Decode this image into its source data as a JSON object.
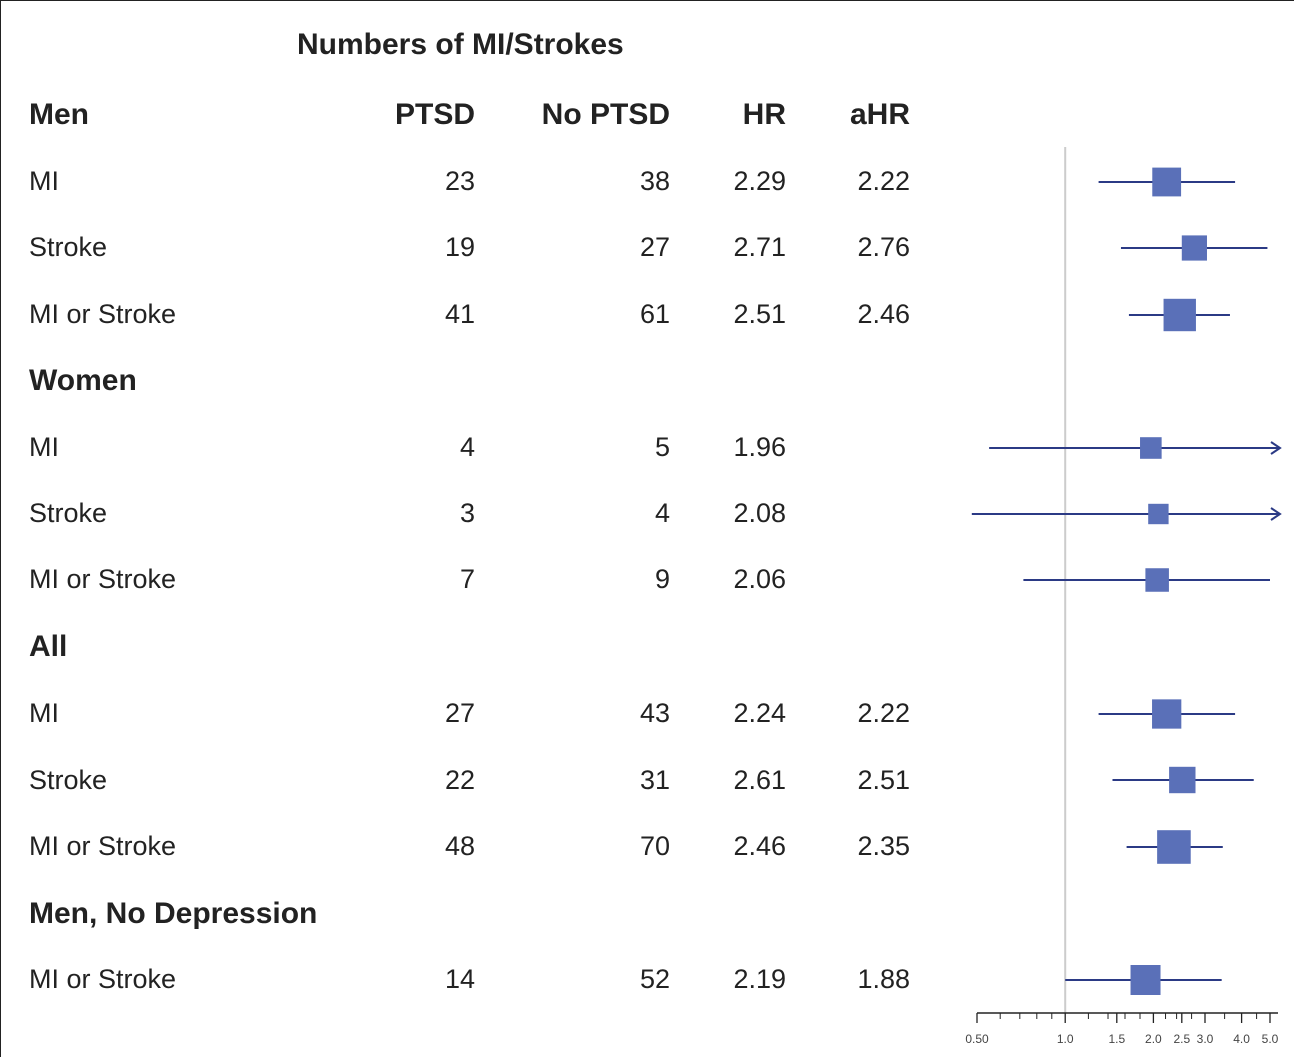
{
  "header": {
    "title": "Numbers of MI/Strokes",
    "col_group": "Men",
    "col_ptsd": "PTSD",
    "col_noptsd": "No PTSD",
    "col_hr": "HR",
    "col_ahr": "aHR"
  },
  "rows": [
    {
      "label": "MI",
      "ptsd": "23",
      "noptsd": "38",
      "hr": "2.29",
      "ahr": "2.22"
    },
    {
      "label": "Stroke",
      "ptsd": "19",
      "noptsd": "27",
      "hr": "2.71",
      "ahr": "2.76"
    },
    {
      "label": "MI or Stroke",
      "ptsd": "41",
      "noptsd": "61",
      "hr": "2.51",
      "ahr": "2.46"
    },
    {
      "label": "Women"
    },
    {
      "label": "MI",
      "ptsd": "4",
      "noptsd": "5",
      "hr": "1.96",
      "ahr": ""
    },
    {
      "label": "Stroke",
      "ptsd": "3",
      "noptsd": "4",
      "hr": "2.08",
      "ahr": ""
    },
    {
      "label": "MI or Stroke",
      "ptsd": "7",
      "noptsd": "9",
      "hr": "2.06",
      "ahr": ""
    },
    {
      "label": "All"
    },
    {
      "label": "MI",
      "ptsd": "27",
      "noptsd": "43",
      "hr": "2.24",
      "ahr": "2.22"
    },
    {
      "label": "Stroke",
      "ptsd": "22",
      "noptsd": "31",
      "hr": "2.61",
      "ahr": "2.51"
    },
    {
      "label": "MI or Stroke",
      "ptsd": "48",
      "noptsd": "70",
      "hr": "2.46",
      "ahr": "2.35"
    },
    {
      "label": "Men, No Depression"
    },
    {
      "label": "MI or Stroke",
      "ptsd": "14",
      "noptsd": "52",
      "hr": "2.19",
      "ahr": "1.88"
    }
  ],
  "chart_data": {
    "type": "forest",
    "scale": "log",
    "xlim": [
      0.5,
      5.0
    ],
    "reference_line": 1.0,
    "tick_labels": [
      "0.50",
      "1.0",
      "1.5",
      "2.0",
      "2.5",
      "3.0",
      "4.0",
      "5.0"
    ],
    "tick_values": [
      0.5,
      1.0,
      1.5,
      2.0,
      2.5,
      3.0,
      4.0,
      5.0
    ],
    "minor_ticks": [
      0.6,
      0.7,
      0.8,
      0.9,
      1.2,
      1.4,
      1.6,
      1.8,
      2.2,
      2.4,
      2.7,
      3.5,
      4.5
    ],
    "marker_color": "#5a70b8",
    "line_color": "#2b3a85",
    "reference_color": "#cccccc",
    "estimates": [
      {
        "group": "Men",
        "label": "MI",
        "point": 2.22,
        "lower": 1.3,
        "upper": 3.8,
        "weight": 0.7,
        "arrow_right": false
      },
      {
        "group": "Men",
        "label": "Stroke",
        "point": 2.76,
        "lower": 1.55,
        "upper": 4.9,
        "weight": 0.55,
        "arrow_right": false
      },
      {
        "group": "Men",
        "label": "MI or Stroke",
        "point": 2.46,
        "lower": 1.65,
        "upper": 3.65,
        "weight": 0.85,
        "arrow_right": false
      },
      {
        "group": "Women",
        "label": "MI",
        "point": 1.96,
        "lower": 0.55,
        "upper": 5.0,
        "weight": 0.4,
        "arrow_right": true
      },
      {
        "group": "Women",
        "label": "Stroke",
        "point": 2.08,
        "lower": 0.48,
        "upper": 5.0,
        "weight": 0.35,
        "arrow_right": true
      },
      {
        "group": "Women",
        "label": "MI or Stroke",
        "point": 2.06,
        "lower": 0.72,
        "upper": 5.0,
        "weight": 0.48,
        "arrow_right": false
      },
      {
        "group": "All",
        "label": "MI",
        "point": 2.22,
        "lower": 1.3,
        "upper": 3.8,
        "weight": 0.72,
        "arrow_right": false
      },
      {
        "group": "All",
        "label": "Stroke",
        "point": 2.51,
        "lower": 1.45,
        "upper": 4.4,
        "weight": 0.6,
        "arrow_right": false
      },
      {
        "group": "All",
        "label": "MI or Stroke",
        "point": 2.35,
        "lower": 1.62,
        "upper": 3.45,
        "weight": 0.9,
        "arrow_right": false
      },
      {
        "group": "Men, No Depression",
        "label": "MI or Stroke",
        "point": 1.88,
        "lower": 1.0,
        "upper": 3.42,
        "weight": 0.75,
        "arrow_right": false
      }
    ]
  }
}
